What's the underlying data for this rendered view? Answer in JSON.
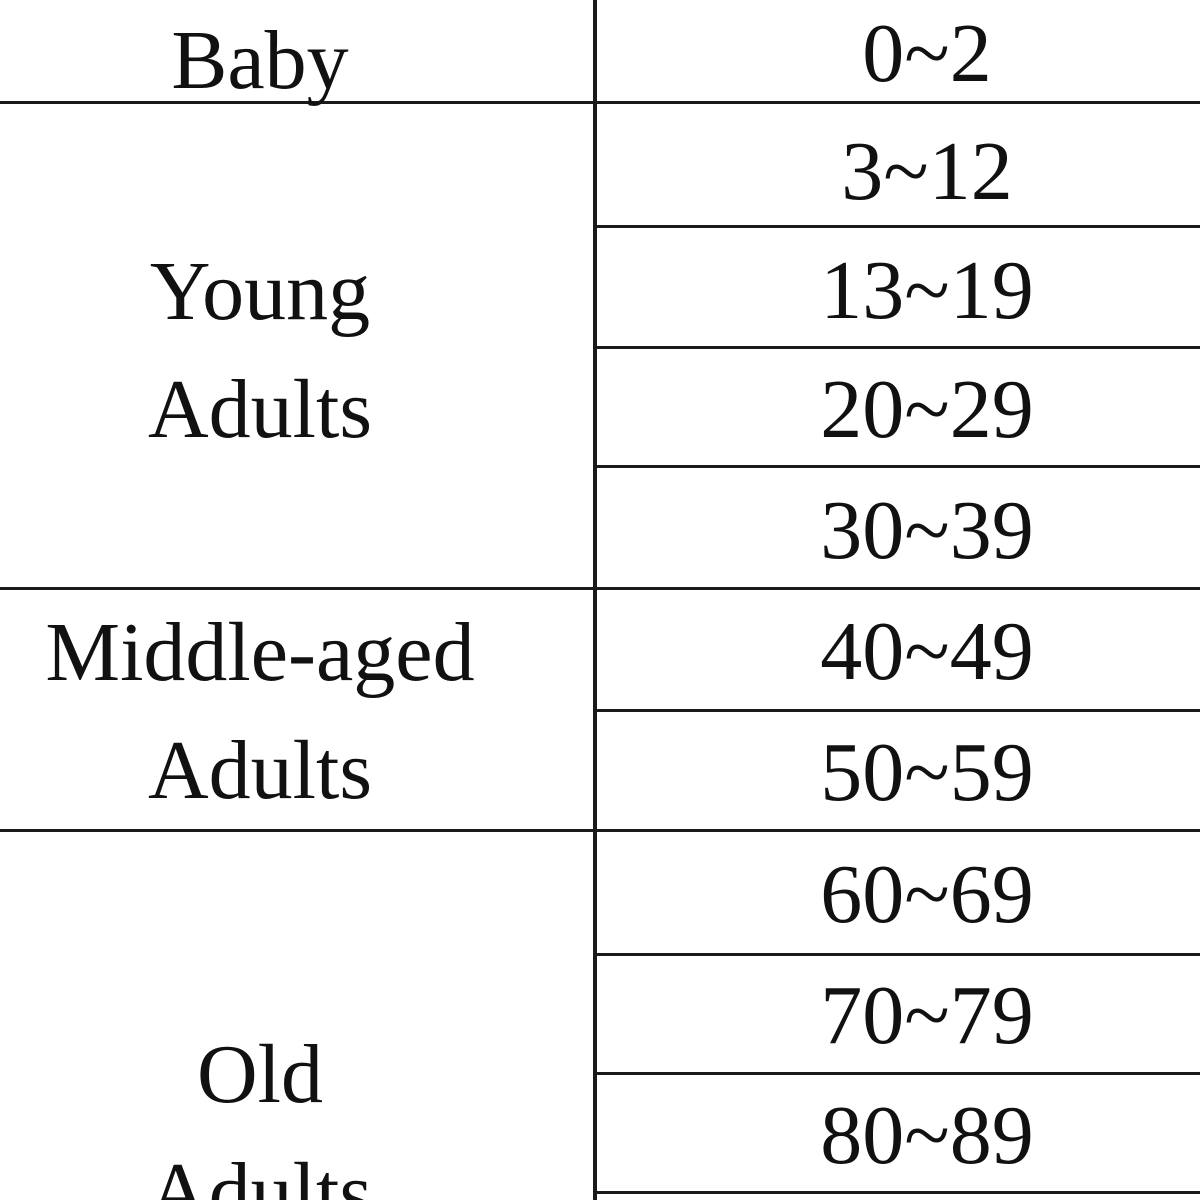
{
  "table": {
    "groups": [
      {
        "label_lines": [
          "Baby"
        ],
        "ranges": [
          "0~2"
        ]
      },
      {
        "label_lines": [
          "Young",
          "Adults"
        ],
        "ranges": [
          "3~12",
          "13~19",
          "20~29",
          "30~39"
        ]
      },
      {
        "label_lines": [
          "Middle-aged",
          "Adults"
        ],
        "ranges": [
          "40~49",
          "50~59"
        ]
      },
      {
        "label_lines": [
          "Old",
          "Adults"
        ],
        "ranges": [
          "60~69",
          "70~79",
          "80~89"
        ]
      }
    ]
  }
}
